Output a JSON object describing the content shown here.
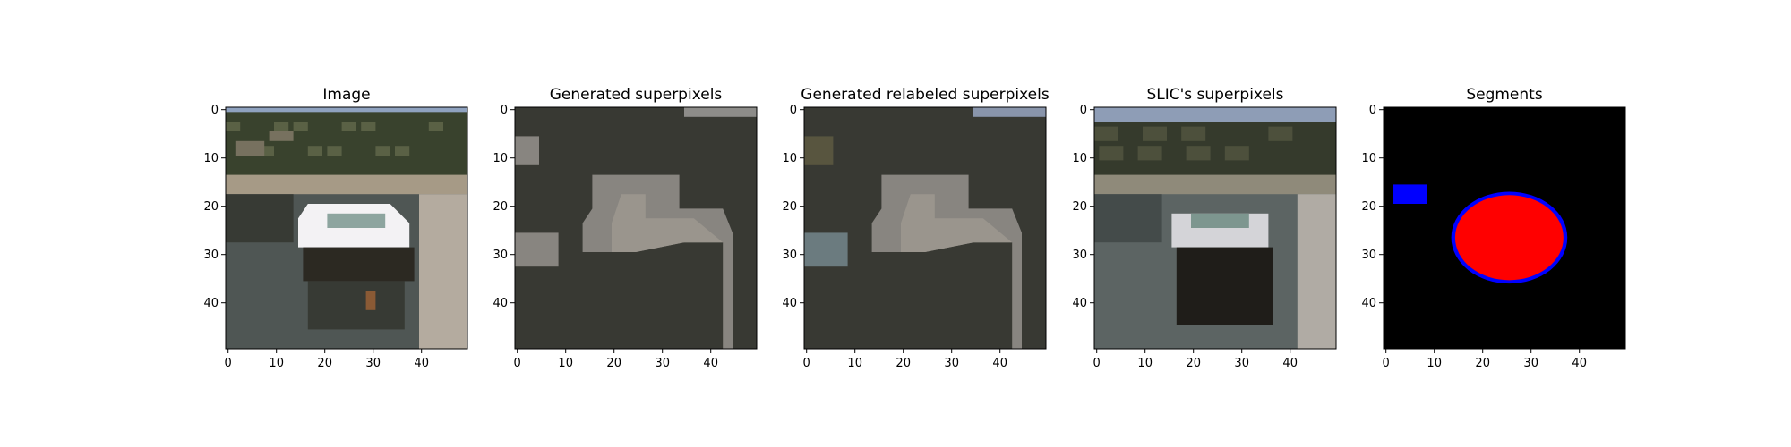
{
  "figure": {
    "panels": [
      {
        "key": "image",
        "title": "Image",
        "colors": {
          "sky": "#8fa2bf",
          "trees": "#39422d",
          "trees_light": "#5a6145",
          "houses": "#77715f",
          "shore": "#a69a86",
          "water": "#4f5654",
          "water_dark": "#373a34",
          "boat_white": "#f3f2f4",
          "boat_glass": "#8da59f",
          "hull_dark": "#2c2922",
          "pier": "#b4ab9f",
          "rust": "#8a5a35"
        }
      },
      {
        "key": "generated",
        "title": "Generated superpixels",
        "colors": {
          "background": "#383933",
          "highlight": "#9a958d",
          "mid": "#888580",
          "sky_patch": "#8d8c89"
        }
      },
      {
        "key": "relabeled",
        "title": "Generated relabeled superpixels",
        "colors": {
          "background": "#383933",
          "highlight": "#9a958d",
          "mid": "#888580",
          "sky_patch": "#8995ab",
          "brown_patch": "#58553f",
          "slate_patch": "#6b7b7f"
        }
      },
      {
        "key": "slic",
        "title": "SLIC's superpixels",
        "colors": {
          "sky": "#8e9db6",
          "trees": "#353a2c",
          "trees_light": "#4d503c",
          "shore": "#8f8a7a",
          "water": "#5c6463",
          "water_dark": "#444b4a",
          "boat_white": "#d4d4d8",
          "boat_glass": "#7d968f",
          "hull": "#1f1d19",
          "pier": "#b0aba4"
        }
      },
      {
        "key": "segments",
        "title": "Segments",
        "colors": {
          "background": "#000000",
          "segment_a": "#ff0000",
          "segment_b": "#0000ff"
        }
      }
    ],
    "y_ticks": [
      "0",
      "10",
      "20",
      "30",
      "40"
    ],
    "x_ticks": [
      "0",
      "10",
      "20",
      "30",
      "40"
    ]
  }
}
